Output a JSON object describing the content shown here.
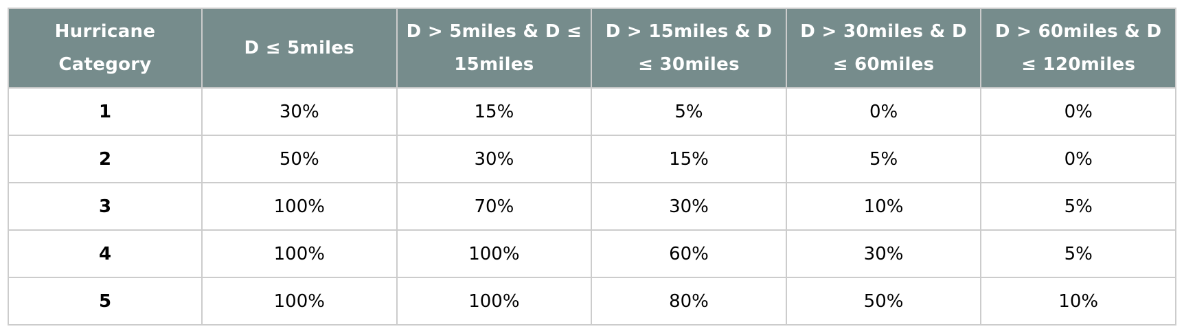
{
  "table": {
    "header": [
      "Hurricane Category",
      "D ≤ 5miles",
      "D > 5miles & D ≤ 15miles",
      "D > 15miles & D ≤ 30miles",
      "D > 30miles & D ≤ 60miles",
      "D > 60miles & D ≤ 120miles"
    ],
    "rows": [
      [
        "1",
        "30%",
        "15%",
        "5%",
        "0%",
        "0%"
      ],
      [
        "2",
        "50%",
        "30%",
        "15%",
        "5%",
        "0%"
      ],
      [
        "3",
        "100%",
        "70%",
        "30%",
        "10%",
        "5%"
      ],
      [
        "4",
        "100%",
        "100%",
        "60%",
        "30%",
        "5%"
      ],
      [
        "5",
        "100%",
        "100%",
        "80%",
        "50%",
        "10%"
      ]
    ]
  }
}
